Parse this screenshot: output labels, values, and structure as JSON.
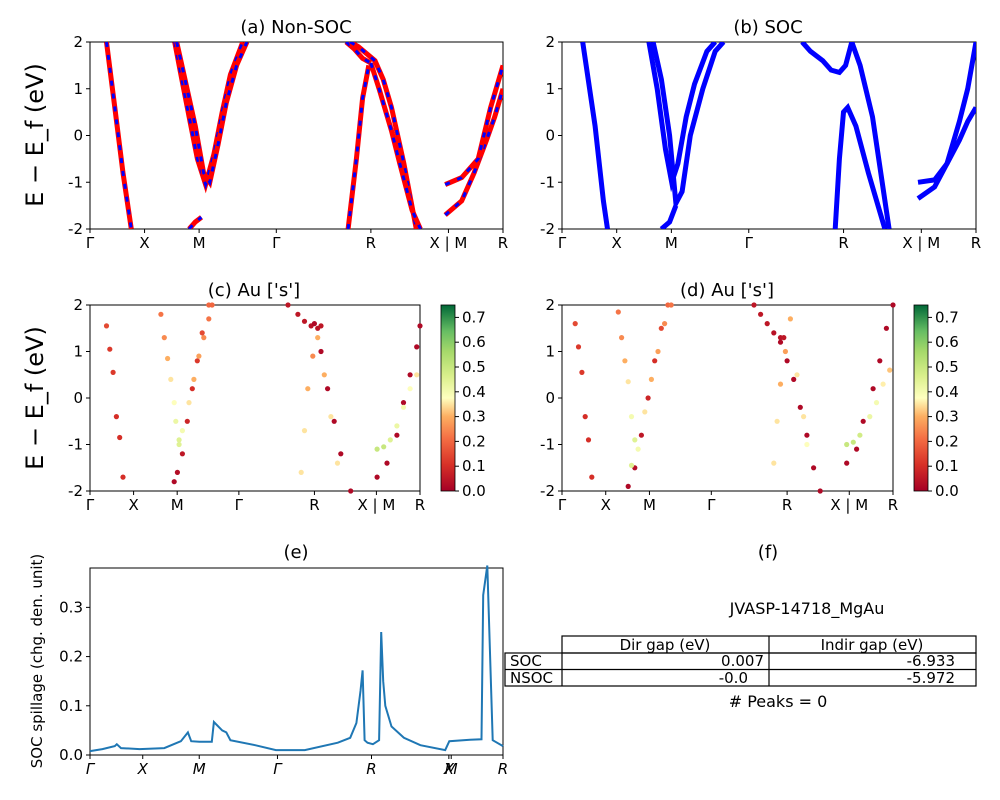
{
  "figure": {
    "titles": {
      "a": "(a) Non-SOC",
      "b": "(b) SOC",
      "c": "(c)  Au ['s']",
      "d": "(d) Au ['s']",
      "e": "(e)",
      "f": "(f)"
    },
    "ylabel_energy": "E − E_f (eV)",
    "ylabel_spillage": "SOC spillage (chg. den. unit)",
    "kpath_labels": [
      "Γ",
      "X",
      "M",
      "Γ",
      "R",
      "X | M",
      "R"
    ],
    "kpath_labels_italic": [
      "Γ",
      "X",
      "M",
      "Γ",
      "R",
      "X",
      "M",
      "R"
    ],
    "colors": {
      "soc": "#0000ff",
      "nsoc": "#ff0000",
      "spillage": "#1f77b4"
    }
  },
  "info": {
    "material": "JVASP-14718_MgAu",
    "table": {
      "headers": [
        "",
        "Dir gap (eV)",
        "Indir gap (eV)"
      ],
      "rows": [
        [
          "SOC",
          "0.007",
          "-6.933"
        ],
        [
          "NSOC",
          "-0.0",
          "-5.972"
        ]
      ]
    },
    "peaks_text": "# Peaks = 0"
  },
  "chart_data": [
    {
      "type": "line",
      "panel": "a",
      "title": "(a) Non-SOC",
      "ylabel": "E − E_f (eV)",
      "ylim": [
        -2,
        2
      ],
      "yticks": [
        -2,
        -1,
        0,
        1,
        2
      ],
      "xticks": [
        "Γ",
        "X",
        "M",
        "Γ",
        "R",
        "X | M",
        "R"
      ],
      "x_tick_positions": [
        0,
        0.1321,
        0.2642,
        0.4511,
        0.6801,
        0.8679,
        1.0
      ],
      "series": [
        {
          "x": [
            0.04,
            0.06,
            0.08,
            0.1
          ],
          "y": [
            2.0,
            0.6,
            -0.8,
            -2.0
          ]
        },
        {
          "x": [
            0.205,
            0.22,
            0.24,
            0.26,
            0.28,
            0.3,
            0.32,
            0.34,
            0.37
          ],
          "y": [
            2.0,
            1.3,
            0.4,
            -0.5,
            -1.05,
            -0.4,
            0.5,
            1.3,
            2.0
          ]
        },
        {
          "x": [
            0.21,
            0.23,
            0.255,
            0.275,
            0.29,
            0.31,
            0.33,
            0.355,
            0.38
          ],
          "y": [
            2.0,
            1.2,
            0.2,
            -0.8,
            -1.0,
            -0.2,
            0.7,
            1.5,
            2.0
          ]
        },
        {
          "x": [
            0.24,
            0.255,
            0.27
          ],
          "y": [
            -2.0,
            -1.85,
            -1.75
          ]
        },
        {
          "x": [
            0.62,
            0.64,
            0.66,
            0.68
          ],
          "y": [
            2.0,
            1.85,
            1.65,
            1.55
          ]
        },
        {
          "x": [
            0.63,
            0.65,
            0.67,
            0.69,
            0.71,
            0.73,
            0.76,
            0.79
          ],
          "y": [
            2.0,
            1.9,
            1.75,
            1.6,
            1.2,
            0.6,
            -0.6,
            -2.0
          ]
        },
        {
          "x": [
            0.625,
            0.645,
            0.66,
            0.675
          ],
          "y": [
            -2.0,
            -0.5,
            0.8,
            1.5
          ]
        },
        {
          "x": [
            0.68,
            0.7,
            0.73,
            0.75,
            0.78,
            0.8
          ],
          "y": [
            1.55,
            1.0,
            0.1,
            -0.6,
            -1.6,
            -2.0
          ]
        },
        {
          "x": [
            0.86,
            0.9,
            0.93,
            0.96,
            0.98,
            1.0
          ],
          "y": [
            -1.7,
            -1.4,
            -0.8,
            -0.1,
            0.4,
            1.0
          ]
        },
        {
          "x": [
            0.86,
            0.9,
            0.94,
            0.97,
            1.0
          ],
          "y": [
            -1.05,
            -0.9,
            -0.5,
            0.6,
            1.5
          ]
        }
      ]
    },
    {
      "type": "line",
      "panel": "b",
      "title": "(b) SOC",
      "ylim": [
        -2,
        2
      ],
      "yticks": [
        -2,
        -1,
        0,
        1,
        2
      ],
      "xticks": [
        "Γ",
        "X",
        "M",
        "Γ",
        "R",
        "X | M",
        "R"
      ],
      "series": [
        {
          "x": [
            0.05,
            0.08,
            0.1,
            0.11
          ],
          "y": [
            2.0,
            0.2,
            -1.4,
            -2.0
          ]
        },
        {
          "x": [
            0.21,
            0.23,
            0.25,
            0.265,
            0.28,
            0.3,
            0.32,
            0.35,
            0.37
          ],
          "y": [
            2.0,
            1.0,
            -0.3,
            -1.0,
            -0.6,
            0.4,
            1.1,
            1.8,
            2.0
          ]
        },
        {
          "x": [
            0.22,
            0.24,
            0.26,
            0.275,
            0.29,
            0.31,
            0.34,
            0.37,
            0.39
          ],
          "y": [
            2.0,
            1.2,
            0.0,
            -1.45,
            -1.2,
            0.0,
            1.0,
            1.8,
            2.0
          ]
        },
        {
          "x": [
            0.24,
            0.26,
            0.275
          ],
          "y": [
            -2.0,
            -1.85,
            -1.5
          ]
        },
        {
          "x": [
            0.58,
            0.6,
            0.63,
            0.65,
            0.67,
            0.685,
            0.7,
            0.72,
            0.75,
            0.79
          ],
          "y": [
            2.0,
            1.8,
            1.6,
            1.4,
            1.35,
            1.5,
            2.0,
            1.5,
            0.4,
            -2.0
          ]
        },
        {
          "x": [
            0.66,
            0.67,
            0.68,
            0.69,
            0.71,
            0.74,
            0.78
          ],
          "y": [
            -2.0,
            -0.5,
            0.5,
            0.6,
            0.2,
            -0.8,
            -2.0
          ]
        },
        {
          "x": [
            0.86,
            0.9,
            0.93,
            0.96,
            0.98,
            1.0
          ],
          "y": [
            -1.35,
            -1.1,
            -0.6,
            0.3,
            1.0,
            2.0
          ]
        },
        {
          "x": [
            0.86,
            0.9,
            0.93,
            0.96,
            0.98,
            1.0
          ],
          "y": [
            -1.0,
            -0.95,
            -0.6,
            -0.1,
            0.3,
            0.6
          ]
        }
      ]
    },
    {
      "type": "scatter",
      "panel": "c",
      "title": "(c)  Au ['s']",
      "ylabel": "E − E_f (eV)",
      "ylim": [
        -2,
        2
      ],
      "colorbar": {
        "min": 0.0,
        "max": 0.75,
        "ticks": [
          0.0,
          0.1,
          0.2,
          0.3,
          0.4,
          0.5,
          0.6,
          0.7
        ],
        "cmap": "RdYlGn"
      },
      "series": [
        {
          "x": [
            0.05,
            0.06,
            0.07,
            0.08,
            0.09,
            0.1
          ],
          "y": [
            1.55,
            1.05,
            0.55,
            -0.4,
            -0.85,
            -1.7
          ],
          "c": [
            0.15,
            0.12,
            0.12,
            0.1,
            0.1,
            0.1
          ]
        },
        {
          "x": [
            0.215,
            0.225,
            0.235,
            0.245,
            0.255,
            0.26,
            0.27
          ],
          "y": [
            1.8,
            1.3,
            0.85,
            0.4,
            -0.1,
            -0.5,
            -0.9
          ],
          "c": [
            0.22,
            0.25,
            0.3,
            0.35,
            0.38,
            0.42,
            0.45
          ]
        },
        {
          "x": [
            0.255,
            0.265,
            0.28,
            0.295,
            0.31,
            0.325,
            0.34,
            0.36
          ],
          "y": [
            -1.8,
            -1.6,
            -1.2,
            -0.5,
            0.2,
            0.8,
            1.4,
            2.0
          ],
          "c": [
            0.02,
            0.03,
            0.05,
            0.08,
            0.1,
            0.12,
            0.15,
            0.2
          ]
        },
        {
          "x": [
            0.27,
            0.28,
            0.3,
            0.315,
            0.33,
            0.345,
            0.36,
            0.37
          ],
          "y": [
            -1.0,
            -0.7,
            -0.1,
            0.4,
            0.9,
            1.3,
            1.7,
            2.0
          ],
          "c": [
            0.45,
            0.4,
            0.35,
            0.3,
            0.28,
            0.25,
            0.22,
            0.2
          ]
        },
        {
          "x": [
            0.6,
            0.63,
            0.65,
            0.67,
            0.69,
            0.7
          ],
          "y": [
            2.0,
            1.8,
            1.65,
            1.55,
            1.5,
            1.55
          ],
          "c": [
            0.05,
            0.05,
            0.05,
            0.04,
            0.04,
            0.05
          ]
        },
        {
          "x": [
            0.68,
            0.7,
            0.72,
            0.74,
            0.76,
            0.79
          ],
          "y": [
            1.6,
            1.0,
            0.2,
            -0.5,
            -1.2,
            -2.0
          ],
          "c": [
            0.02,
            0.02,
            0.02,
            0.02,
            0.02,
            0.02
          ]
        },
        {
          "x": [
            0.64,
            0.65,
            0.66,
            0.675,
            0.69,
            0.71,
            0.73,
            0.75
          ],
          "y": [
            -1.6,
            -0.7,
            0.2,
            0.9,
            1.3,
            0.5,
            -0.4,
            -1.4
          ],
          "c": [
            0.35,
            0.35,
            0.3,
            0.25,
            0.3,
            0.3,
            0.35,
            0.35
          ]
        },
        {
          "x": [
            0.87,
            0.9,
            0.93,
            0.95,
            0.97,
            0.99,
            1.0
          ],
          "y": [
            -1.7,
            -1.4,
            -0.8,
            -0.1,
            0.5,
            1.1,
            1.55
          ],
          "c": [
            0.02,
            0.02,
            0.02,
            0.02,
            0.02,
            0.02,
            0.02
          ]
        },
        {
          "x": [
            0.87,
            0.89,
            0.91,
            0.93,
            0.95,
            0.97,
            0.99
          ],
          "y": [
            -1.1,
            -1.05,
            -0.9,
            -0.6,
            -0.2,
            0.2,
            0.5
          ],
          "c": [
            0.5,
            0.5,
            0.45,
            0.42,
            0.4,
            0.38,
            0.35
          ]
        }
      ]
    },
    {
      "type": "scatter",
      "panel": "d",
      "title": "(d) Au ['s']",
      "ylim": [
        -2,
        2
      ],
      "colorbar": {
        "min": 0.0,
        "max": 0.75,
        "ticks": [
          0.0,
          0.1,
          0.2,
          0.3,
          0.4,
          0.5,
          0.6,
          0.7
        ],
        "cmap": "RdYlGn"
      },
      "series": [
        {
          "x": [
            0.04,
            0.05,
            0.06,
            0.07,
            0.08,
            0.09
          ],
          "y": [
            1.6,
            1.1,
            0.55,
            -0.4,
            -0.9,
            -1.7
          ],
          "c": [
            0.15,
            0.12,
            0.12,
            0.1,
            0.1,
            0.1
          ]
        },
        {
          "x": [
            0.17,
            0.18,
            0.19,
            0.2,
            0.21,
            0.22
          ],
          "y": [
            1.85,
            1.3,
            0.8,
            0.35,
            -0.4,
            -0.9
          ],
          "c": [
            0.22,
            0.25,
            0.3,
            0.35,
            0.4,
            0.45
          ]
        },
        {
          "x": [
            0.2,
            0.22,
            0.24,
            0.26,
            0.28,
            0.3,
            0.32
          ],
          "y": [
            -1.9,
            -1.5,
            -0.8,
            0.0,
            0.8,
            1.5,
            2.0
          ],
          "c": [
            0.02,
            0.03,
            0.05,
            0.08,
            0.1,
            0.15,
            0.2
          ]
        },
        {
          "x": [
            0.21,
            0.23,
            0.25,
            0.27,
            0.29,
            0.31,
            0.33
          ],
          "y": [
            -1.45,
            -1.1,
            -0.3,
            0.4,
            1.0,
            1.6,
            2.0
          ],
          "c": [
            0.45,
            0.4,
            0.35,
            0.3,
            0.28,
            0.25,
            0.22
          ]
        },
        {
          "x": [
            0.58,
            0.6,
            0.62,
            0.64,
            0.66,
            0.67
          ],
          "y": [
            2.0,
            1.8,
            1.6,
            1.4,
            1.3,
            1.3
          ],
          "c": [
            0.05,
            0.05,
            0.05,
            0.04,
            0.04,
            0.05
          ]
        },
        {
          "x": [
            0.66,
            0.68,
            0.7,
            0.72,
            0.74,
            0.76,
            0.78
          ],
          "y": [
            1.2,
            0.8,
            0.4,
            -0.2,
            -0.8,
            -1.5,
            -2.0
          ],
          "c": [
            0.02,
            0.02,
            0.02,
            0.02,
            0.02,
            0.02,
            0.02
          ]
        },
        {
          "x": [
            0.64,
            0.65,
            0.66,
            0.675,
            0.69,
            0.71,
            0.73,
            0.74
          ],
          "y": [
            -1.4,
            -0.5,
            0.3,
            1.0,
            1.7,
            0.5,
            -0.4,
            -1.0
          ],
          "c": [
            0.35,
            0.35,
            0.3,
            0.28,
            0.3,
            0.35,
            0.35,
            0.38
          ]
        },
        {
          "x": [
            0.86,
            0.89,
            0.91,
            0.94,
            0.96,
            0.98,
            1.0
          ],
          "y": [
            -1.4,
            -1.1,
            -0.5,
            0.2,
            0.8,
            1.5,
            2.0
          ],
          "c": [
            0.02,
            0.02,
            0.02,
            0.02,
            0.02,
            0.02,
            0.02
          ]
        },
        {
          "x": [
            0.86,
            0.88,
            0.9,
            0.93,
            0.95,
            0.97,
            0.99
          ],
          "y": [
            -1.0,
            -0.95,
            -0.8,
            -0.4,
            -0.1,
            0.3,
            0.6
          ],
          "c": [
            0.5,
            0.5,
            0.48,
            0.42,
            0.4,
            0.36,
            0.32
          ]
        }
      ]
    },
    {
      "type": "line",
      "panel": "e",
      "title": "(e)",
      "ylabel": "SOC spillage (chg. den. unit)",
      "ylim": [
        0,
        0.38
      ],
      "yticks": [
        0.0,
        0.1,
        0.2,
        0.3
      ],
      "xticks": [
        "Γ",
        "X",
        "M",
        "Γ",
        "R",
        "X",
        "M",
        "R"
      ],
      "x_tick_positions": [
        0,
        0.1277,
        0.2645,
        0.4539,
        0.6816,
        0.8689,
        0.8746,
        1.0
      ],
      "series": [
        {
          "name": "SOC spillage",
          "x": [
            0.0,
            0.03,
            0.06,
            0.065,
            0.075,
            0.12,
            0.18,
            0.22,
            0.237,
            0.245,
            0.265,
            0.295,
            0.3,
            0.32,
            0.33,
            0.34,
            0.4,
            0.45,
            0.52,
            0.6,
            0.63,
            0.645,
            0.655,
            0.66,
            0.665,
            0.672,
            0.685,
            0.7,
            0.705,
            0.71,
            0.715,
            0.73,
            0.76,
            0.8,
            0.86,
            0.87,
            0.92,
            0.948,
            0.952,
            0.962,
            0.975,
            1.0
          ],
          "y": [
            0.008,
            0.012,
            0.018,
            0.022,
            0.014,
            0.012,
            0.014,
            0.028,
            0.046,
            0.028,
            0.027,
            0.027,
            0.067,
            0.05,
            0.046,
            0.03,
            0.02,
            0.01,
            0.01,
            0.025,
            0.035,
            0.065,
            0.13,
            0.172,
            0.03,
            0.025,
            0.022,
            0.03,
            0.25,
            0.15,
            0.1,
            0.058,
            0.035,
            0.02,
            0.01,
            0.028,
            0.031,
            0.032,
            0.325,
            0.385,
            0.03,
            0.018
          ]
        }
      ]
    }
  ]
}
